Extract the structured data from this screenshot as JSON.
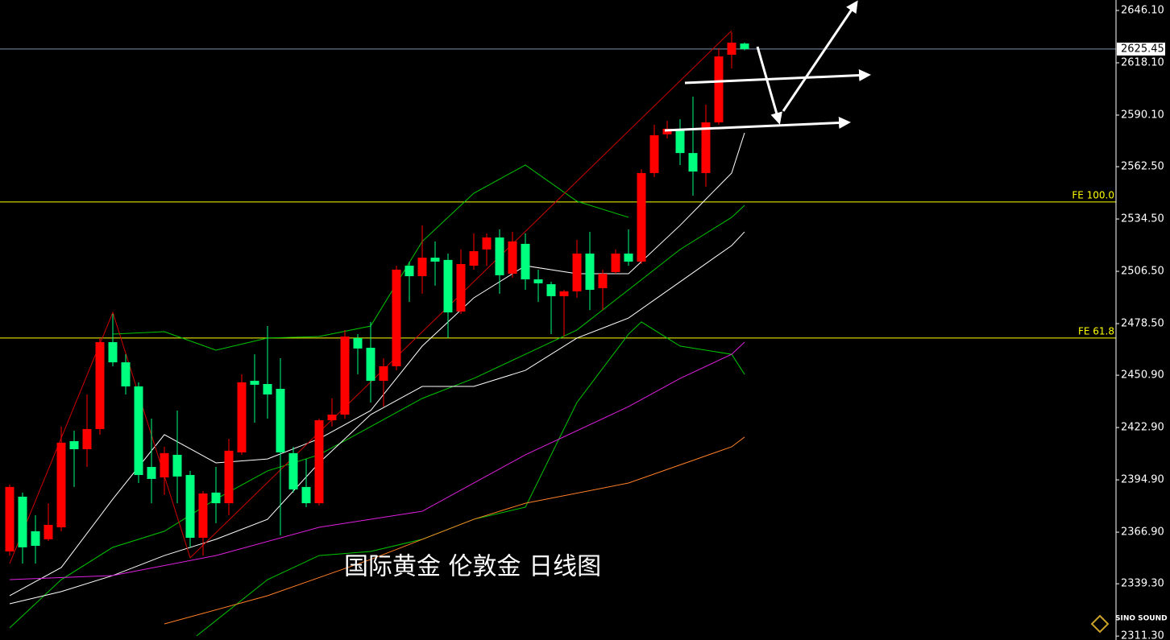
{
  "chart_data": {
    "type": "candlestick",
    "title": "国际黄金 伦敦金 日线图",
    "logo": "SINO SOUND",
    "ylim": [
      2309.2,
      2651.7
    ],
    "yticks": [
      {
        "value": 2646.1,
        "label": "2646.10"
      },
      {
        "value": 2618.1,
        "label": "2618.10"
      },
      {
        "value": 2590.1,
        "label": "2590.10"
      },
      {
        "value": 2562.5,
        "label": "2562.50"
      },
      {
        "value": 2534.5,
        "label": "2534.50"
      },
      {
        "value": 2506.5,
        "label": "2506.50"
      },
      {
        "value": 2478.5,
        "label": "2478.50"
      },
      {
        "value": 2450.9,
        "label": "2450.90"
      },
      {
        "value": 2422.9,
        "label": "2422.90"
      },
      {
        "value": 2394.9,
        "label": "2394.90"
      },
      {
        "value": 2366.9,
        "label": "2366.90"
      },
      {
        "value": 2339.3,
        "label": "2339.30"
      },
      {
        "value": 2311.3,
        "label": "2311.30"
      }
    ],
    "up_color": "#ff0000",
    "down_color": "#00ff7f",
    "open": [
      2356.6,
      2385.9,
      2367.4,
      2363.1,
      2369.5,
      2415.6,
      2411.3,
      2422.1,
      2468.6,
      2457.8,
      2444.9,
      2401.8,
      2396.2,
      2408.3,
      2397.5,
      2363.9,
      2388.1,
      2382.4,
      2409.6,
      2447.9,
      2446.2,
      2443.6,
      2409.2,
      2391.1,
      2382.4,
      2426.8,
      2429.8,
      2470.8,
      2465.6,
      2447.9,
      2455.7,
      2509.5,
      2503.9,
      2513.8,
      2512.6,
      2485.0,
      2509.5,
      2518.2,
      2524.6,
      2505.2,
      2521.2,
      2502.2,
      2499.6,
      2493.2,
      2495.8,
      2516.0,
      2497.5,
      2506.1,
      2516.0,
      2511.7,
      2559.1,
      2579.8,
      2581.9,
      2569.8,
      2559.1,
      2586.2,
      2622.4,
      2628.4
    ],
    "high": [
      2392.4,
      2388.1,
      2376.0,
      2382.4,
      2423.4,
      2421.2,
      2440.6,
      2470.8,
      2483.7,
      2462.1,
      2447.1,
      2427.7,
      2412.6,
      2432.0,
      2399.7,
      2388.9,
      2401.8,
      2416.9,
      2451.4,
      2462.1,
      2477.2,
      2460.0,
      2412.6,
      2406.1,
      2427.7,
      2438.5,
      2475.1,
      2472.9,
      2479.4,
      2460.0,
      2509.5,
      2511.7,
      2531.1,
      2522.5,
      2516.0,
      2518.2,
      2526.8,
      2526.8,
      2528.9,
      2527.6,
      2526.8,
      2507.4,
      2500.9,
      2496.6,
      2523.3,
      2527.6,
      2507.4,
      2518.2,
      2528.9,
      2561.2,
      2584.9,
      2587.1,
      2587.9,
      2600.0,
      2595.7,
      2625.9,
      2634.5,
      2629.0
    ],
    "low": [
      2354.4,
      2350.1,
      2350.1,
      2362.2,
      2367.4,
      2391.1,
      2401.8,
      2419.1,
      2455.7,
      2440.6,
      2393.2,
      2382.4,
      2386.8,
      2382.4,
      2358.8,
      2354.4,
      2371.7,
      2376.0,
      2408.3,
      2425.5,
      2427.7,
      2365.2,
      2388.1,
      2380.3,
      2381.2,
      2423.4,
      2427.7,
      2451.4,
      2436.3,
      2434.1,
      2453.5,
      2490.1,
      2494.5,
      2498.8,
      2470.8,
      2483.7,
      2507.4,
      2509.5,
      2494.5,
      2503.1,
      2496.6,
      2490.1,
      2472.9,
      2471.6,
      2492.3,
      2485.8,
      2485.8,
      2505.2,
      2509.5,
      2510.4,
      2556.9,
      2577.6,
      2563.4,
      2547.0,
      2551.8,
      2584.9,
      2615.1,
      2624.8
    ],
    "close": [
      2391.1,
      2358.8,
      2359.6,
      2370.8,
      2414.8,
      2411.3,
      2422.1,
      2468.6,
      2457.8,
      2444.9,
      2397.5,
      2395.4,
      2409.2,
      2396.7,
      2363.9,
      2387.6,
      2382.4,
      2410.5,
      2447.1,
      2445.8,
      2440.6,
      2409.6,
      2389.8,
      2382.4,
      2426.8,
      2429.8,
      2471.6,
      2465.2,
      2447.9,
      2455.7,
      2507.4,
      2503.9,
      2513.8,
      2511.7,
      2484.5,
      2510.4,
      2517.3,
      2524.6,
      2504.4,
      2522.5,
      2502.2,
      2500.1,
      2493.2,
      2495.8,
      2516.0,
      2496.6,
      2505.2,
      2516.0,
      2511.7,
      2559.1,
      2579.3,
      2582.8,
      2569.8,
      2559.9,
      2586.2,
      2621.5,
      2628.9,
      2625.45
    ],
    "lines": [
      {
        "color": "#00c800",
        "x": [
          8,
          12,
          16,
          20,
          24,
          28,
          32,
          36,
          40,
          44,
          48
        ],
        "values": [
          2472.9,
          2474.2,
          2464.3,
          2470.8,
          2471.6,
          2477.2,
          2522.5,
          2548.3,
          2563.4,
          2544.0,
          2535.4
        ]
      },
      {
        "color": "#00c800",
        "x": [
          0,
          4,
          8,
          12,
          16,
          20,
          24,
          28,
          32,
          36,
          40,
          44,
          48,
          52,
          56,
          57
        ],
        "values": [
          2315.7,
          2341.5,
          2358.8,
          2367.4,
          2384.6,
          2399.7,
          2408.3,
          2423.4,
          2438.5,
          2449.2,
          2462.1,
          2475.1,
          2496.6,
          2518.2,
          2535.4,
          2541.8
        ]
      },
      {
        "color": "#00c800",
        "x": [
          14.5,
          20,
          24,
          28,
          32,
          36,
          40,
          44,
          48,
          49,
          52,
          56,
          57
        ],
        "values": [
          2311.4,
          2341.5,
          2354.4,
          2356.6,
          2363.1,
          2373.8,
          2380.3,
          2436.3,
          2472.9,
          2479.4,
          2466.5,
          2462.1,
          2451.4
        ]
      },
      {
        "color": "#ffffff",
        "x": [
          0,
          4,
          8,
          12,
          16,
          20,
          24,
          28,
          32,
          36,
          40,
          44,
          48,
          52,
          56,
          57
        ],
        "values": [
          2332.9,
          2348.0,
          2384.6,
          2419.1,
          2404.0,
          2406.1,
          2416.9,
          2432.0,
          2466.5,
          2492.3,
          2509.5,
          2505.2,
          2505.2,
          2531.1,
          2559.1,
          2580.6
        ]
      },
      {
        "color": "#ffffff",
        "x": [
          0,
          4,
          8,
          12,
          16,
          20,
          24,
          28,
          32,
          36,
          40,
          44,
          48,
          52,
          56,
          57
        ],
        "values": [
          2328.6,
          2335.1,
          2343.7,
          2354.4,
          2363.1,
          2373.8,
          2404.0,
          2429.8,
          2444.9,
          2444.9,
          2453.5,
          2470.8,
          2481.5,
          2500.9,
          2520.3,
          2527.6
        ]
      },
      {
        "color": "#e020e0",
        "x": [
          0,
          8,
          16,
          24,
          32,
          40,
          48,
          52,
          56,
          57
        ],
        "values": [
          2341.5,
          2343.7,
          2354.4,
          2369.5,
          2378.1,
          2408.3,
          2434.1,
          2449.2,
          2462.1,
          2468.6
        ]
      },
      {
        "color": "#ff7f27",
        "x": [
          12,
          20,
          28,
          36,
          40,
          48,
          56,
          57
        ],
        "values": [
          2317.8,
          2332.9,
          2352.3,
          2373.8,
          2382.4,
          2393.2,
          2412.6,
          2417.8
        ]
      },
      {
        "color": "#d00000",
        "x": [
          0,
          8,
          14,
          56
        ],
        "values": [
          2350.1,
          2484.5,
          2353.2,
          2635.3
        ]
      }
    ],
    "hlines": [
      {
        "label": "FE 100.0",
        "value": 2543.6,
        "color": "#ffff00"
      },
      {
        "label": "FE 61.8",
        "value": 2470.8,
        "color": "#ffff00"
      }
    ],
    "last_price": {
      "value": 2625.45,
      "color": "#7f8fb0"
    }
  }
}
